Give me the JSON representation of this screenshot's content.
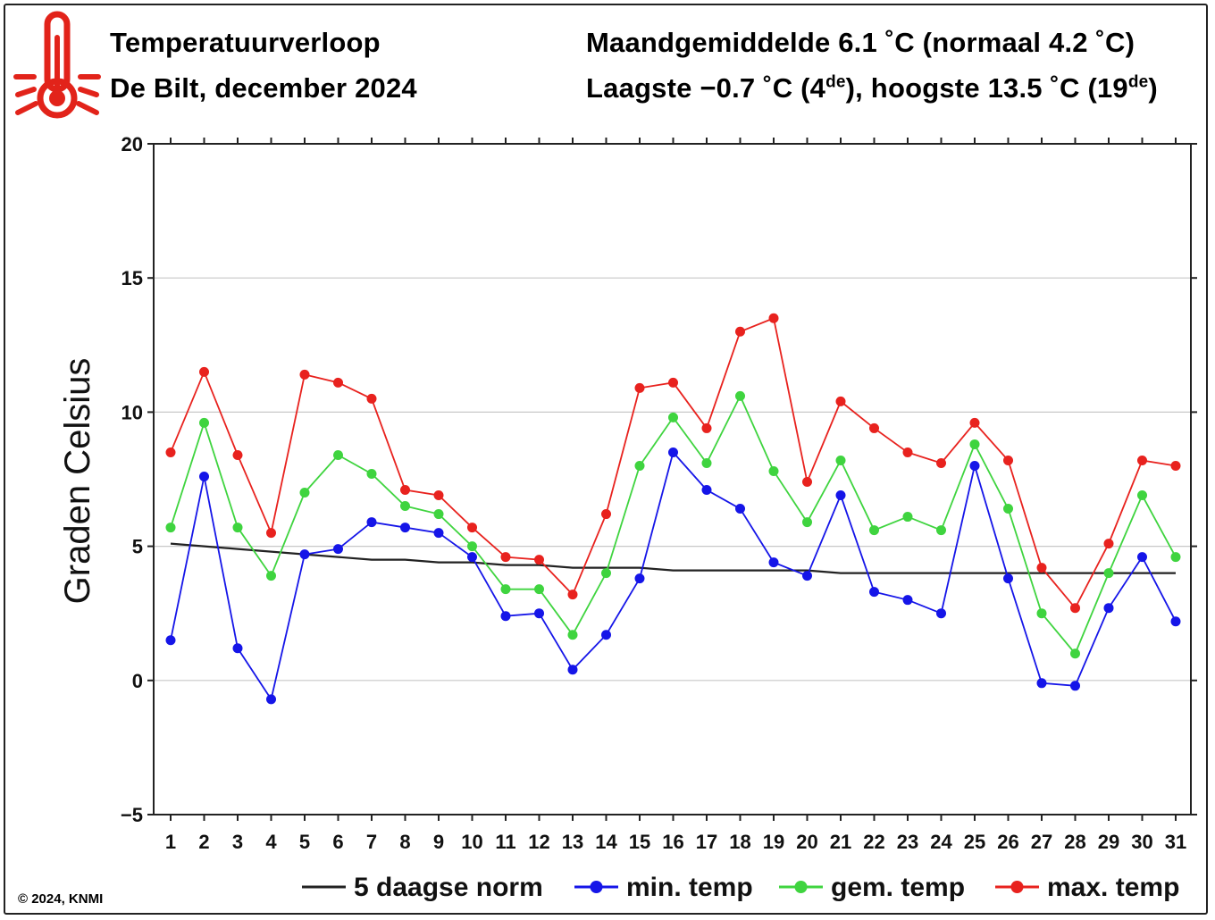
{
  "header": {
    "title": "Temperatuurverloop",
    "subtitle": "De Bilt, december 2024",
    "stats_line1": "Maandgemiddelde 6.1 ˚C (normaal 4.2 ˚C)",
    "stats_line2_pre": "Laagste −0.7 ˚C (4",
    "stats_line2_sup1": "de",
    "stats_line2_mid": "), hoogste 13.5 ˚C (19",
    "stats_line2_sup2": "de",
    "stats_line2_post": ")"
  },
  "icon": {
    "name": "thermometer-icon",
    "color": "#e2231a"
  },
  "footer": {
    "copyright": "© 2024, KNMI"
  },
  "chart_data": {
    "type": "line",
    "ylabel": "Graden Celsius",
    "xlabel": "",
    "ylim": [
      -5,
      20
    ],
    "yticks": [
      -5,
      0,
      5,
      10,
      15,
      20
    ],
    "ytick_labels": [
      "−5",
      "0",
      "5",
      "10",
      "15",
      "20"
    ],
    "x": [
      1,
      2,
      3,
      4,
      5,
      6,
      7,
      8,
      9,
      10,
      11,
      12,
      13,
      14,
      15,
      16,
      17,
      18,
      19,
      20,
      21,
      22,
      23,
      24,
      25,
      26,
      27,
      28,
      29,
      30,
      31
    ],
    "grid": true,
    "legend_position": "bottom",
    "series": [
      {
        "name": "5 daagse norm",
        "color": "#222222",
        "markers": false,
        "values": [
          5.1,
          5.0,
          4.9,
          4.8,
          4.7,
          4.6,
          4.5,
          4.5,
          4.4,
          4.4,
          4.3,
          4.3,
          4.2,
          4.2,
          4.2,
          4.1,
          4.1,
          4.1,
          4.1,
          4.1,
          4.0,
          4.0,
          4.0,
          4.0,
          4.0,
          4.0,
          4.0,
          4.0,
          4.0,
          4.0,
          4.0
        ]
      },
      {
        "name": "min. temp",
        "color": "#1515e8",
        "markers": true,
        "values": [
          1.5,
          7.6,
          1.2,
          -0.7,
          4.7,
          4.9,
          5.9,
          5.7,
          5.5,
          4.6,
          2.4,
          2.5,
          0.4,
          1.7,
          3.8,
          8.5,
          7.1,
          6.4,
          4.4,
          3.9,
          6.9,
          3.3,
          3.0,
          2.5,
          8.0,
          3.8,
          -0.1,
          -0.2,
          2.7,
          4.6,
          2.2
        ]
      },
      {
        "name": "gem. temp",
        "color": "#3fd43f",
        "markers": true,
        "values": [
          5.7,
          9.6,
          5.7,
          3.9,
          7.0,
          8.4,
          7.7,
          6.5,
          6.2,
          5.0,
          3.4,
          3.4,
          1.7,
          4.0,
          8.0,
          9.8,
          8.1,
          10.6,
          7.8,
          5.9,
          8.2,
          5.6,
          6.1,
          5.6,
          8.8,
          6.4,
          2.5,
          1.0,
          4.0,
          6.9,
          4.6
        ]
      },
      {
        "name": "max. temp",
        "color": "#e8221e",
        "markers": true,
        "values": [
          8.5,
          11.5,
          8.4,
          5.5,
          11.4,
          11.1,
          10.5,
          7.1,
          6.9,
          5.7,
          4.6,
          4.5,
          3.2,
          6.2,
          10.9,
          11.1,
          9.4,
          13.0,
          13.5,
          7.4,
          10.4,
          9.4,
          8.5,
          8.1,
          9.6,
          8.2,
          4.2,
          2.7,
          5.1,
          8.2,
          8.0
        ]
      }
    ]
  }
}
